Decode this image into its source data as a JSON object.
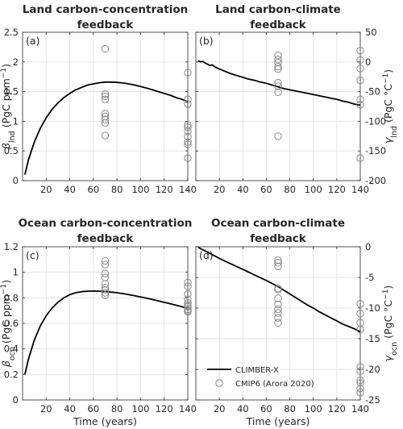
{
  "charts": [
    {
      "id": "a",
      "title_lines": [
        "Land carbon-concentration",
        "feedback"
      ],
      "panel_label": "(a)",
      "ylabel_sym": "β",
      "ylabel_sub": "lnd",
      "ylabel_units": " (PgC ppm",
      "ylabel_sup": "−1",
      "ylabel_close": ")",
      "yaxis": "left",
      "xlim": [
        0,
        140
      ],
      "ylim": [
        0,
        2.5
      ],
      "xticks": [
        20,
        40,
        60,
        80,
        100,
        120,
        140
      ],
      "yticks": [
        0,
        0.5,
        1,
        1.5,
        2,
        2.5
      ],
      "ytick_labels": [
        "0",
        "0.5",
        "1",
        "1.5",
        "2",
        "2.5"
      ],
      "show_xtick_labels": true,
      "xlabel": ""
    },
    {
      "id": "b",
      "title_lines": [
        "Land carbon-climate",
        "feedback"
      ],
      "panel_label": "(b)",
      "ylabel_sym": "γ",
      "ylabel_sub": "lnd",
      "ylabel_units": " (PgC °C",
      "ylabel_sup": "−1",
      "ylabel_close": ")",
      "yaxis": "right",
      "xlim": [
        0,
        140
      ],
      "ylim": [
        -200,
        50
      ],
      "xticks": [
        20,
        40,
        60,
        80,
        100,
        120,
        140
      ],
      "yticks": [
        -200,
        -150,
        -100,
        -50,
        0,
        50
      ],
      "ytick_labels": [
        "-200",
        "-150",
        "-100",
        "-50",
        "0",
        "50"
      ],
      "show_xtick_labels": true,
      "xlabel": ""
    },
    {
      "id": "c",
      "title_lines": [
        "Ocean carbon-concentration",
        "feedback"
      ],
      "panel_label": "(c)",
      "ylabel_sym": "β",
      "ylabel_sub": "ocn",
      "ylabel_units": " (PgC ppm",
      "ylabel_sup": "−1",
      "ylabel_close": ")",
      "yaxis": "left",
      "xlim": [
        0,
        140
      ],
      "ylim": [
        0,
        1.2
      ],
      "xticks": [
        20,
        40,
        60,
        80,
        100,
        120,
        140
      ],
      "yticks": [
        0,
        0.2,
        0.4,
        0.6,
        0.8,
        1,
        1.2
      ],
      "ytick_labels": [
        "0",
        "0.2",
        "0.4",
        "0.6",
        "0.8",
        "1",
        "1.2"
      ],
      "show_xtick_labels": true,
      "xlabel": "Time (years)"
    },
    {
      "id": "d",
      "title_lines": [
        "Ocean carbon-climate",
        "feedback"
      ],
      "panel_label": "(d)",
      "ylabel_sym": "γ",
      "ylabel_sub": "ocn",
      "ylabel_units": " (PgC °C",
      "ylabel_sup": "−1",
      "ylabel_close": ")",
      "yaxis": "right",
      "xlim": [
        0,
        140
      ],
      "ylim": [
        -25,
        0
      ],
      "xticks": [
        20,
        40,
        60,
        80,
        100,
        120,
        140
      ],
      "yticks": [
        -25,
        -20,
        -15,
        -10,
        -5,
        0
      ],
      "ytick_labels": [
        "-25",
        "-20",
        "-15",
        "-10",
        "-5",
        "0"
      ],
      "show_xtick_labels": true,
      "xlabel": "Time (years)"
    }
  ],
  "legend": {
    "entries": [
      "CLIMBER-X",
      "CMIP6 (Arora 2020)"
    ]
  },
  "colors": {
    "line": "#000000",
    "marker": "#8a8a8a",
    "grid": "#e3e3e3",
    "axis": "#262626"
  },
  "chart_data": [
    {
      "type": "line",
      "panel": "a",
      "series": [
        {
          "name": "CLIMBER-X",
          "type": "line",
          "x": [
            2,
            5,
            10,
            15,
            20,
            25,
            30,
            35,
            40,
            45,
            50,
            55,
            60,
            65,
            70,
            75,
            80,
            85,
            90,
            95,
            100,
            105,
            110,
            115,
            120,
            125,
            130,
            135,
            140
          ],
          "y": [
            0.1,
            0.35,
            0.65,
            0.88,
            1.06,
            1.2,
            1.31,
            1.4,
            1.47,
            1.53,
            1.57,
            1.61,
            1.63,
            1.65,
            1.66,
            1.66,
            1.655,
            1.645,
            1.63,
            1.61,
            1.585,
            1.56,
            1.53,
            1.5,
            1.47,
            1.44,
            1.4,
            1.37,
            1.33
          ]
        },
        {
          "name": "CMIP6 (Arora 2020)",
          "type": "scatter",
          "x": [
            70,
            70,
            70,
            70,
            70,
            70,
            70,
            70,
            70,
            140,
            140,
            140,
            140,
            140,
            140,
            140,
            140,
            140,
            140
          ],
          "y": [
            2.22,
            1.46,
            1.42,
            1.37,
            1.13,
            1.08,
            1.03,
            0.97,
            0.76,
            1.82,
            1.37,
            1.29,
            0.94,
            0.9,
            0.83,
            0.74,
            0.65,
            0.61,
            0.38
          ]
        }
      ]
    },
    {
      "type": "line",
      "panel": "b",
      "series": [
        {
          "name": "CLIMBER-X",
          "type": "line",
          "x": [
            2,
            4,
            6,
            8,
            10,
            12,
            14,
            16,
            18,
            20,
            25,
            30,
            35,
            40,
            45,
            50,
            55,
            60,
            65,
            70,
            75,
            80,
            85,
            90,
            95,
            100,
            105,
            110,
            115,
            120,
            125,
            130,
            135,
            140
          ],
          "y": [
            2,
            0,
            1,
            -2,
            -4,
            -6,
            -5,
            -8,
            -10,
            -12,
            -16,
            -20,
            -23,
            -26,
            -29,
            -31,
            -34,
            -36,
            -39,
            -42,
            -45,
            -47,
            -49,
            -51,
            -53,
            -55,
            -57,
            -59,
            -61,
            -63,
            -66,
            -68,
            -71,
            -73
          ]
        },
        {
          "name": "CMIP6 (Arora 2020)",
          "type": "scatter",
          "x": [
            70,
            70,
            70,
            70,
            70,
            70,
            70,
            70,
            70,
            140,
            140,
            140,
            140,
            140,
            140,
            140
          ],
          "y": [
            11,
            4,
            -1,
            -8,
            -12,
            -35,
            -41,
            -51,
            -125,
            19,
            3,
            -11,
            -31,
            -63,
            -72,
            -162
          ]
        }
      ]
    },
    {
      "type": "line",
      "panel": "c",
      "series": [
        {
          "name": "CLIMBER-X",
          "type": "line",
          "x": [
            2,
            5,
            10,
            15,
            20,
            25,
            30,
            35,
            40,
            45,
            50,
            55,
            60,
            65,
            70,
            75,
            80,
            85,
            90,
            95,
            100,
            105,
            110,
            115,
            120,
            125,
            130,
            135,
            140
          ],
          "y": [
            0.2,
            0.32,
            0.47,
            0.58,
            0.66,
            0.72,
            0.765,
            0.8,
            0.825,
            0.84,
            0.848,
            0.852,
            0.853,
            0.852,
            0.849,
            0.845,
            0.84,
            0.833,
            0.825,
            0.816,
            0.807,
            0.797,
            0.787,
            0.776,
            0.765,
            0.754,
            0.742,
            0.73,
            0.718
          ]
        },
        {
          "name": "CMIP6 (Arora 2020)",
          "type": "scatter",
          "x": [
            70,
            70,
            70,
            70,
            70,
            70,
            70,
            70,
            70,
            140,
            140,
            140,
            140,
            140,
            140,
            140,
            140,
            140,
            140
          ],
          "y": [
            1.09,
            1.06,
            0.99,
            0.96,
            0.91,
            0.88,
            0.86,
            0.84,
            0.82,
            0.92,
            0.89,
            0.83,
            0.79,
            0.76,
            0.74,
            0.73,
            0.71,
            0.7,
            0.69
          ]
        }
      ]
    },
    {
      "type": "line",
      "panel": "d",
      "series": [
        {
          "name": "CLIMBER-X",
          "type": "line",
          "x": [
            2,
            5,
            10,
            15,
            20,
            25,
            30,
            35,
            40,
            45,
            50,
            55,
            60,
            65,
            70,
            75,
            80,
            85,
            90,
            95,
            100,
            105,
            110,
            115,
            120,
            125,
            130,
            135,
            140
          ],
          "y": [
            -0.1,
            -0.4,
            -0.9,
            -1.4,
            -1.9,
            -2.35,
            -2.8,
            -3.25,
            -3.7,
            -4.15,
            -4.6,
            -5.05,
            -5.5,
            -6.0,
            -6.5,
            -7.1,
            -7.7,
            -8.3,
            -8.9,
            -9.5,
            -10.0,
            -10.6,
            -11.1,
            -11.6,
            -12.1,
            -12.6,
            -13.0,
            -13.4,
            -13.9
          ]
        },
        {
          "name": "CMIP6 (Arora 2020)",
          "type": "scatter",
          "x": [
            70,
            70,
            70,
            70,
            70,
            70,
            70,
            70,
            70,
            70,
            70,
            140,
            140,
            140,
            140,
            140,
            140,
            140,
            140,
            140,
            140
          ],
          "y": [
            -2.2,
            -2.6,
            -3.2,
            -6.8,
            -7.0,
            -8.4,
            -9.4,
            -10.2,
            -10.8,
            -11.6,
            -12.4,
            -9.3,
            -10.9,
            -12.4,
            -13.5,
            -19.6,
            -20.3,
            -21.8,
            -22.2,
            -23.1,
            -23.8
          ]
        }
      ]
    }
  ]
}
